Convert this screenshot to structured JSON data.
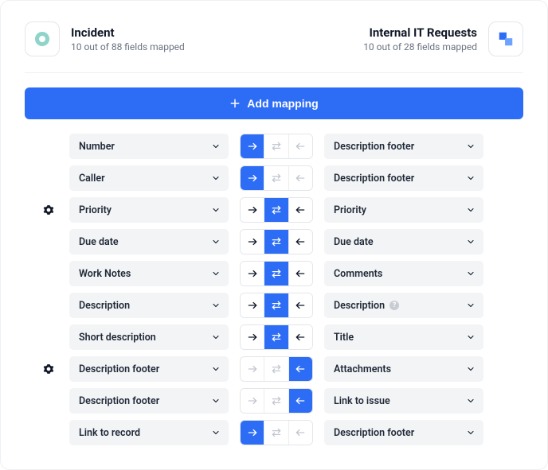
{
  "colors": {
    "primary": "#2d6df6",
    "pill_bg": "#f3f4f6",
    "border": "#e3e6ea",
    "text": "#111827",
    "muted": "#6b7280",
    "inactive_icon": "#c2c7cf",
    "left_brand": "#8fd4c9",
    "right_brand": "#2d6df6"
  },
  "left": {
    "title": "Incident",
    "sub": "10 out of 88 fields mapped"
  },
  "right": {
    "title": "Internal IT Requests",
    "sub": "10 out of 28 fields mapped"
  },
  "add_label": "Add mapping",
  "rows": [
    {
      "gear": false,
      "left": "Number",
      "right": "Description footer",
      "info": false,
      "dir": {
        "active": "right",
        "right": "active",
        "both": "inactive",
        "left": "inactive"
      }
    },
    {
      "gear": false,
      "left": "Caller",
      "right": "Description footer",
      "info": false,
      "dir": {
        "active": "right",
        "right": "active",
        "both": "inactive",
        "left": "inactive"
      }
    },
    {
      "gear": true,
      "left": "Priority",
      "right": "Priority",
      "info": false,
      "dir": {
        "active": "both",
        "right": "normal",
        "both": "active",
        "left": "normal"
      }
    },
    {
      "gear": false,
      "left": "Due date",
      "right": "Due date",
      "info": false,
      "dir": {
        "active": "both",
        "right": "normal",
        "both": "active",
        "left": "normal"
      }
    },
    {
      "gear": false,
      "left": "Work Notes",
      "right": "Comments",
      "info": false,
      "dir": {
        "active": "both",
        "right": "normal",
        "both": "active",
        "left": "normal"
      }
    },
    {
      "gear": false,
      "left": "Description",
      "right": "Description",
      "info": true,
      "dir": {
        "active": "both",
        "right": "normal",
        "both": "active",
        "left": "normal"
      }
    },
    {
      "gear": false,
      "left": "Short description",
      "right": "Title",
      "info": false,
      "dir": {
        "active": "both",
        "right": "normal",
        "both": "active",
        "left": "normal"
      }
    },
    {
      "gear": true,
      "left": "Description footer",
      "right": "Attachments",
      "info": false,
      "dir": {
        "active": "left",
        "right": "inactive",
        "both": "inactive",
        "left": "active"
      }
    },
    {
      "gear": false,
      "left": "Description footer",
      "right": "Link to issue",
      "info": false,
      "dir": {
        "active": "left",
        "right": "inactive",
        "both": "inactive",
        "left": "active"
      }
    },
    {
      "gear": false,
      "left": "Link to record",
      "right": "Description footer",
      "info": false,
      "dir": {
        "active": "right",
        "right": "active",
        "both": "inactive",
        "left": "inactive"
      }
    }
  ]
}
